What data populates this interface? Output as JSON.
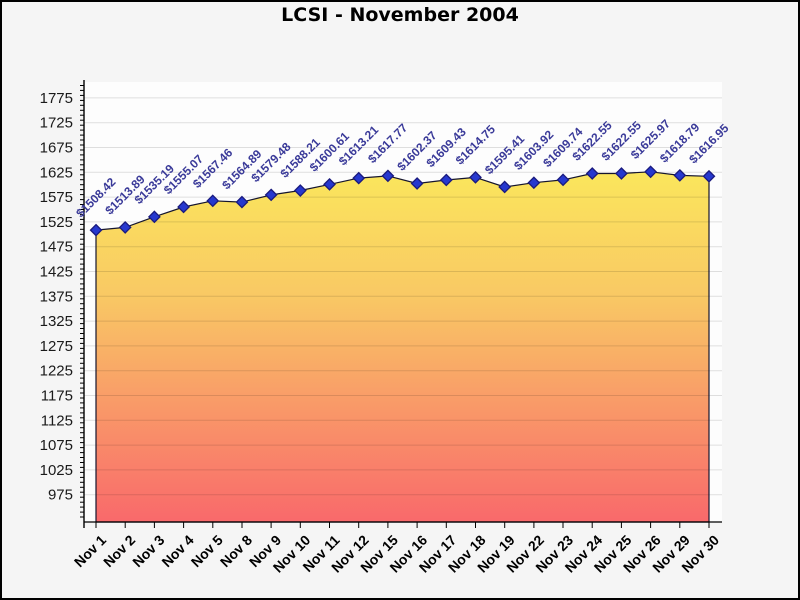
{
  "window": {
    "background": "#f5f5f5",
    "border_color": "#000000"
  },
  "chart_data": {
    "type": "area",
    "title": "LCSI - November 2004",
    "categories": [
      "Nov 1",
      "Nov 2",
      "Nov 3",
      "Nov 4",
      "Nov 5",
      "Nov 8",
      "Nov 9",
      "Nov 10",
      "Nov 11",
      "Nov 12",
      "Nov 15",
      "Nov 16",
      "Nov 17",
      "Nov 18",
      "Nov 19",
      "Nov 22",
      "Nov 23",
      "Nov 24",
      "Nov 25",
      "Nov 26",
      "Nov 29",
      "Nov 30"
    ],
    "values": [
      1508.42,
      1513.89,
      1535.19,
      1555.07,
      1567.46,
      1564.89,
      1579.48,
      1588.21,
      1600.61,
      1613.21,
      1617.77,
      1602.37,
      1609.43,
      1614.75,
      1595.41,
      1603.92,
      1609.74,
      1622.55,
      1622.55,
      1625.97,
      1618.79,
      1616.95
    ],
    "point_labels": [
      "$1508.42",
      "$1513.89",
      "$1535.19",
      "$1555.07",
      "$1567.46",
      "$1564.89",
      "$1579.48",
      "$1588.21",
      "$1600.61",
      "$1613.21",
      "$1617.77",
      "$1602.37",
      "$1609.43",
      "$1614.75",
      "$1595.41",
      "$1603.92",
      "$1609.74",
      "$1622.55",
      "$1622.55",
      "$1625.97",
      "$1618.79",
      "$1616.95"
    ],
    "xlabel": "",
    "ylabel": "",
    "ylim": [
      975,
      1775
    ],
    "ytick_step": 50,
    "ytick_labels": [
      "975",
      "1025",
      "1075",
      "1125",
      "1175",
      "1225",
      "1275",
      "1325",
      "1375",
      "1425",
      "1475",
      "1525",
      "1575",
      "1625",
      "1675",
      "1725",
      "1775"
    ],
    "grid": true,
    "legend": "none",
    "marker": "diamond",
    "colors": {
      "area_top": "#FAE65C",
      "area_upper_mid": "#F9C964",
      "area_lower_mid": "#F99C68",
      "area_bottom": "#F9696B",
      "line": "#15152e",
      "marker_fill": "#2638CE",
      "marker_stroke": "#1A1A7E",
      "point_label": "#3a3a99",
      "axis": "#000000",
      "grid_line": "rgba(0,0,0,0.12)",
      "plot_bg": "#FDFDFD",
      "page_bg": "#f5f5f5",
      "title_color": "#000000"
    }
  }
}
